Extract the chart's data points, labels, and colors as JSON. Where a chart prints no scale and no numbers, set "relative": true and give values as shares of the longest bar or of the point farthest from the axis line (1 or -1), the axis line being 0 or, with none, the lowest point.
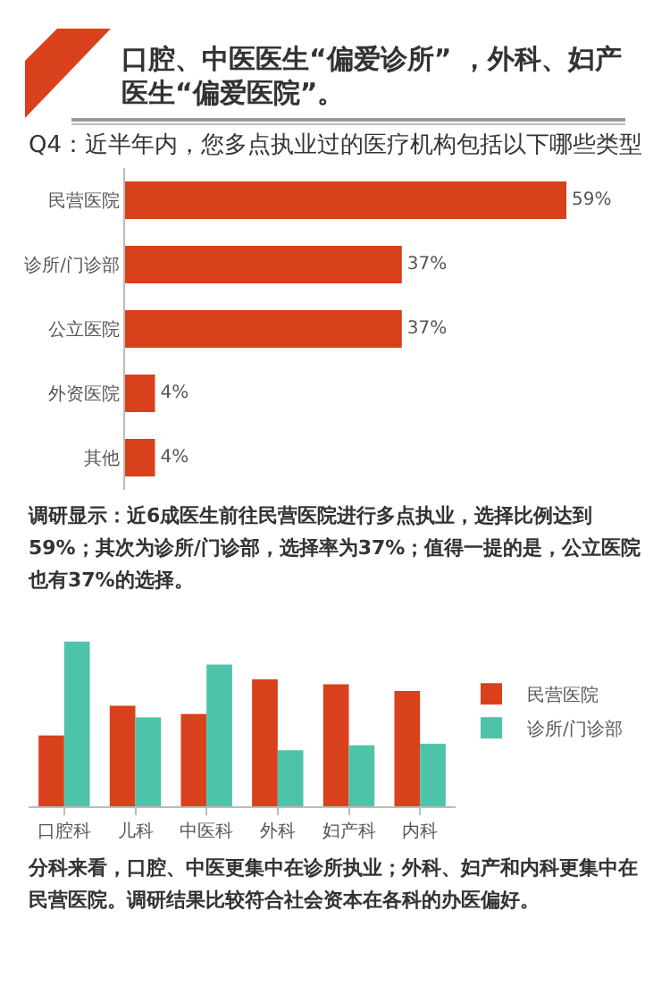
{
  "chart_data": [
    {
      "type": "bar",
      "orientation": "horizontal",
      "title": "口腔、中医医生“偏爱诊所” ，外科、妇产医生“偏爱医院”。",
      "subtitle": "Q4：近半年内，您多点执业过的医疗机构包括以下哪些类型",
      "categories": [
        "民营医院",
        "诊所/门诊部",
        "公立医院",
        "外资医院",
        "其他"
      ],
      "values": [
        59,
        37,
        37,
        4,
        4
      ],
      "value_labels": [
        "59%",
        "37%",
        "37%",
        "4%",
        "4%"
      ],
      "color": "#d9401c",
      "tick_labels": "y",
      "annotations": [
        "调研显示：近6成医生前往民营医院进行多点执业，选择比例达到59%；其次为诊所/门诊部，选择率为37%；值得一提的是，公立医院也有37%的选择。"
      ]
    },
    {
      "type": "bar",
      "relative": true,
      "categories": [
        "口腔科",
        "儿科",
        "中医科",
        "外科",
        "妇产科",
        "内科"
      ],
      "series": [
        {
          "name": "民营医院",
          "color": "#d9401c",
          "values": [
            0.43,
            0.61,
            0.56,
            0.77,
            0.74,
            0.7
          ]
        },
        {
          "name": "诊所/门诊部",
          "color": "#4dc4aa",
          "values": [
            1,
            0.54,
            0.86,
            0.34,
            0.37,
            0.38
          ]
        }
      ],
      "legend": "right",
      "annotations": [
        "分科来看，口腔、中医更集中在诊所执业；外科、妇产和内科更集中在民营医院。调研结果比较符合社会资本在各科的办医偏好。"
      ]
    }
  ]
}
